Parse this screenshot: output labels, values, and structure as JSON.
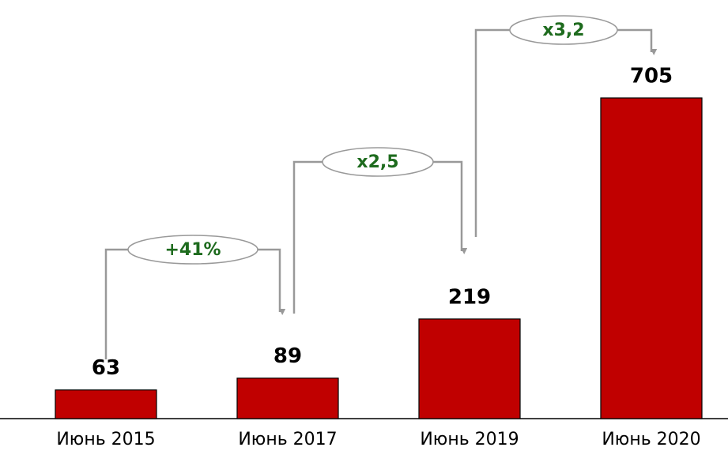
{
  "chart_data": {
    "type": "bar",
    "categories": [
      "Июнь 2015",
      "Июнь 2017",
      "Июнь 2019",
      "Июнь 2020"
    ],
    "values": [
      63,
      89,
      219,
      705
    ],
    "color": "#c00000",
    "annotations": [
      "+41%",
      "x2,5",
      "x3,2"
    ]
  }
}
